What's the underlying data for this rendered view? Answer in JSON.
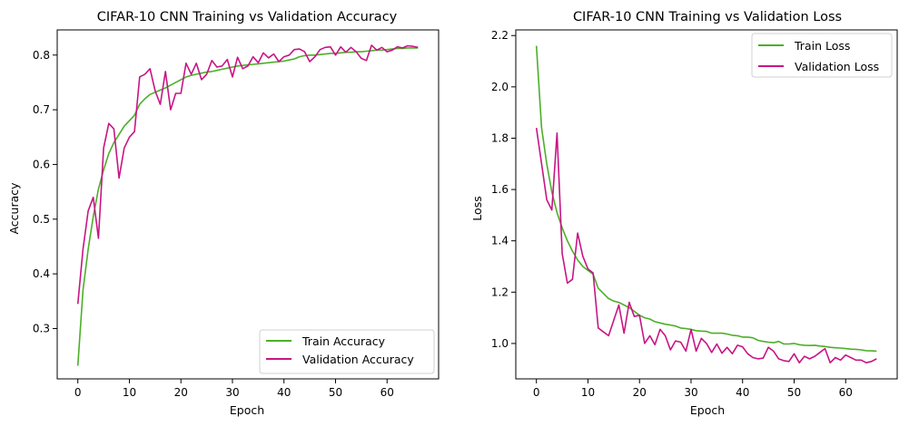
{
  "colors": {
    "train": "#4caf28",
    "validation": "#c71585"
  },
  "chart_data": [
    {
      "type": "line",
      "title": "CIFAR-10 CNN Training vs Validation Accuracy",
      "xlabel": "Epoch",
      "ylabel": "Accuracy",
      "xlim": [
        -4,
        70
      ],
      "ylim": [
        0.208,
        0.846
      ],
      "xticks": [
        0,
        10,
        20,
        30,
        40,
        50,
        60
      ],
      "xtick_labels": [
        "0",
        "10",
        "20",
        "30",
        "40",
        "50",
        "60"
      ],
      "yticks": [
        0.3,
        0.4,
        0.5,
        0.6,
        0.7,
        0.8
      ],
      "ytick_labels": [
        "0.3",
        "0.4",
        "0.5",
        "0.6",
        "0.7",
        "0.8"
      ],
      "grid": false,
      "legend_position": "lower-right",
      "x": [
        0,
        1,
        2,
        3,
        4,
        5,
        6,
        7,
        8,
        9,
        10,
        11,
        12,
        13,
        14,
        15,
        16,
        17,
        18,
        19,
        20,
        21,
        22,
        23,
        24,
        25,
        26,
        27,
        28,
        29,
        30,
        31,
        32,
        33,
        34,
        35,
        36,
        37,
        38,
        39,
        40,
        41,
        42,
        43,
        44,
        45,
        46,
        47,
        48,
        49,
        50,
        51,
        52,
        53,
        54,
        55,
        56,
        57,
        58,
        59,
        60,
        61,
        62,
        63,
        64,
        65,
        66
      ],
      "series": [
        {
          "name": "Train Accuracy",
          "color_key": "train",
          "values": [
            0.232,
            0.37,
            0.445,
            0.505,
            0.555,
            0.59,
            0.62,
            0.64,
            0.655,
            0.67,
            0.68,
            0.69,
            0.71,
            0.72,
            0.728,
            0.732,
            0.736,
            0.74,
            0.745,
            0.75,
            0.755,
            0.76,
            0.763,
            0.765,
            0.767,
            0.769,
            0.77,
            0.772,
            0.774,
            0.776,
            0.778,
            0.78,
            0.781,
            0.782,
            0.783,
            0.784,
            0.785,
            0.786,
            0.787,
            0.788,
            0.789,
            0.791,
            0.793,
            0.797,
            0.799,
            0.8,
            0.8,
            0.801,
            0.802,
            0.803,
            0.803,
            0.804,
            0.805,
            0.805,
            0.806,
            0.806,
            0.807,
            0.808,
            0.809,
            0.809,
            0.81,
            0.811,
            0.812,
            0.812,
            0.813,
            0.813,
            0.813
          ]
        },
        {
          "name": "Validation Accuracy",
          "color_key": "validation",
          "values": [
            0.345,
            0.445,
            0.515,
            0.54,
            0.465,
            0.63,
            0.675,
            0.665,
            0.575,
            0.63,
            0.65,
            0.66,
            0.76,
            0.765,
            0.775,
            0.735,
            0.71,
            0.77,
            0.7,
            0.73,
            0.73,
            0.785,
            0.765,
            0.785,
            0.755,
            0.765,
            0.79,
            0.778,
            0.78,
            0.792,
            0.76,
            0.796,
            0.775,
            0.78,
            0.797,
            0.786,
            0.804,
            0.795,
            0.802,
            0.788,
            0.797,
            0.8,
            0.81,
            0.811,
            0.806,
            0.788,
            0.797,
            0.81,
            0.814,
            0.815,
            0.8,
            0.815,
            0.805,
            0.814,
            0.806,
            0.794,
            0.79,
            0.818,
            0.809,
            0.814,
            0.806,
            0.809,
            0.815,
            0.813,
            0.817,
            0.816,
            0.814
          ]
        }
      ]
    },
    {
      "type": "line",
      "title": "CIFAR-10 CNN Training vs Validation Loss",
      "xlabel": "Epoch",
      "ylabel": "Loss",
      "xlim": [
        -4,
        70
      ],
      "ylim": [
        0.862,
        2.222
      ],
      "xticks": [
        0,
        10,
        20,
        30,
        40,
        50,
        60
      ],
      "xtick_labels": [
        "0",
        "10",
        "20",
        "30",
        "40",
        "50",
        "60"
      ],
      "yticks": [
        1.0,
        1.2,
        1.4,
        1.6,
        1.8,
        2.0,
        2.2
      ],
      "ytick_labels": [
        "1.0",
        "1.2",
        "1.4",
        "1.6",
        "1.8",
        "2.0",
        "2.2"
      ],
      "grid": false,
      "legend_position": "upper-right",
      "x": [
        0,
        1,
        2,
        3,
        4,
        5,
        6,
        7,
        8,
        9,
        10,
        11,
        12,
        13,
        14,
        15,
        16,
        17,
        18,
        19,
        20,
        21,
        22,
        23,
        24,
        25,
        26,
        27,
        28,
        29,
        30,
        31,
        32,
        33,
        34,
        35,
        36,
        37,
        38,
        39,
        40,
        41,
        42,
        43,
        44,
        45,
        46,
        47,
        48,
        49,
        50,
        51,
        52,
        53,
        54,
        55,
        56,
        57,
        58,
        59,
        60,
        61,
        62,
        63,
        64,
        65,
        66
      ],
      "series": [
        {
          "name": "Train Loss",
          "color_key": "train",
          "values": [
            2.16,
            1.84,
            1.7,
            1.59,
            1.51,
            1.45,
            1.4,
            1.36,
            1.325,
            1.3,
            1.285,
            1.27,
            1.215,
            1.195,
            1.175,
            1.165,
            1.16,
            1.15,
            1.14,
            1.125,
            1.11,
            1.1,
            1.095,
            1.085,
            1.08,
            1.075,
            1.072,
            1.068,
            1.06,
            1.058,
            1.055,
            1.05,
            1.048,
            1.047,
            1.04,
            1.04,
            1.04,
            1.037,
            1.032,
            1.03,
            1.025,
            1.025,
            1.022,
            1.012,
            1.008,
            1.005,
            1.003,
            1.008,
            0.998,
            0.998,
            1.0,
            0.995,
            0.993,
            0.992,
            0.993,
            0.99,
            0.988,
            0.985,
            0.983,
            0.982,
            0.98,
            0.978,
            0.977,
            0.975,
            0.972,
            0.971,
            0.97
          ]
        },
        {
          "name": "Validation Loss",
          "color_key": "validation",
          "values": [
            1.84,
            1.7,
            1.56,
            1.52,
            1.82,
            1.35,
            1.235,
            1.25,
            1.43,
            1.34,
            1.29,
            1.275,
            1.06,
            1.045,
            1.03,
            1.09,
            1.15,
            1.04,
            1.16,
            1.105,
            1.11,
            1.0,
            1.03,
            0.995,
            1.055,
            1.03,
            0.975,
            1.01,
            1.005,
            0.97,
            1.055,
            0.97,
            1.02,
            1.0,
            0.965,
            0.998,
            0.962,
            0.985,
            0.96,
            0.993,
            0.987,
            0.96,
            0.945,
            0.94,
            0.943,
            0.985,
            0.97,
            0.94,
            0.933,
            0.93,
            0.96,
            0.925,
            0.95,
            0.94,
            0.95,
            0.965,
            0.98,
            0.925,
            0.945,
            0.935,
            0.955,
            0.945,
            0.935,
            0.935,
            0.925,
            0.93,
            0.94
          ]
        }
      ]
    }
  ]
}
